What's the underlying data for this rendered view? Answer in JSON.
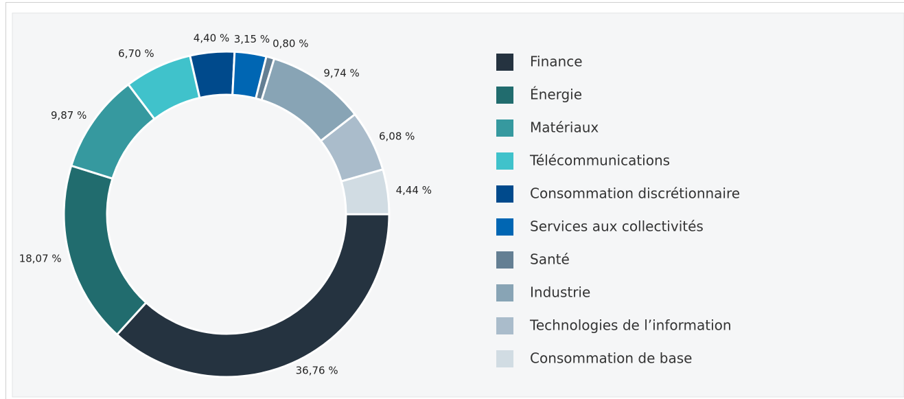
{
  "chart_data": {
    "type": "donut",
    "categories": [
      "Finance",
      "Énergie",
      "Matériaux",
      "Télécommunications",
      "Consommation discrétionnaire",
      "Services aux collectivités",
      "Santé",
      "Industrie",
      "Technologies de l’information",
      "Consommation de base"
    ],
    "values": [
      36.76,
      18.07,
      9.87,
      6.7,
      4.4,
      3.15,
      0.8,
      9.74,
      6.08,
      4.44
    ],
    "value_labels": [
      "36,76 %",
      "18,07 %",
      "9,87 %",
      "6,70 %",
      "4,40 %",
      "3,15 %",
      "0,80 %",
      "9,74 %",
      "6,08 %",
      "4,44 %"
    ],
    "colors": [
      "#253340",
      "#216c6e",
      "#36999f",
      "#40c2cb",
      "#004a8c",
      "#0066b3",
      "#647f93",
      "#88a4b5",
      "#aabccb",
      "#d1dce3"
    ],
    "legend": "right"
  }
}
